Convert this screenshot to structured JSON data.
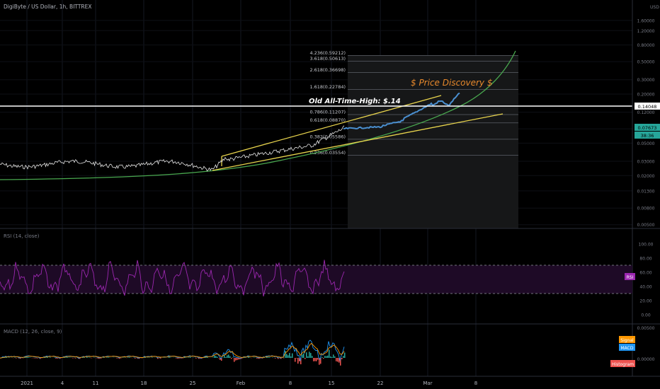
{
  "header": {
    "title": "DigiByte / US Dollar, 1h, BITTREX"
  },
  "price_scale": {
    "currency": "USD",
    "ticks": [
      "2.80000",
      "1.60000",
      "1.20000",
      "0.80000",
      "0.50000",
      "0.30000",
      "0.20000",
      "0.12000",
      "0.07500",
      "0.05000",
      "0.03000",
      "0.02000",
      "0.01300",
      "0.00800",
      "0.00500"
    ]
  },
  "badges": {
    "current_line": "0.14048",
    "last_price": "0.07673",
    "countdown": "38:36"
  },
  "fib_labels": [
    "4.236(0.59212)",
    "3.618(0.50613)",
    "2.618(0.36698)",
    "1.618(0.22784)",
    "0.786(0.11207)",
    "0.618(0.08870)",
    "0.382(0.05586)",
    "0.236(0.03554)"
  ],
  "annotations": {
    "ath": "Old All-Time-High: $.14",
    "discovery": "$ Price Discovery $"
  },
  "rsi_panel": {
    "title": "RSI (14, close)",
    "ticks": [
      "100.00",
      "80.00",
      "60.00",
      "40.00",
      "20.00",
      "0.00"
    ],
    "badge": "RSI"
  },
  "macd_panel": {
    "title": "MACD (12, 26, close, 9)",
    "ticks": [
      "0.00500",
      "0.00000"
    ],
    "badges": {
      "signal": "Signal",
      "macd": "MACD",
      "histogram": "Histogram"
    }
  },
  "time_axis": {
    "labels": [
      "2021",
      "4",
      "11",
      "18",
      "25",
      "Feb",
      "8",
      "15",
      "22",
      "Mar",
      "8"
    ]
  },
  "colors": {
    "background": "#000000",
    "grid": "#1e222d",
    "price_line": "#e6e6e6",
    "projection": "#4a8fd0",
    "yellow_channel": "#e8d44d",
    "green_curve": "#49a84f",
    "rsi": "#9c27b0",
    "macd": "#2196f3",
    "signal": "#ff9800",
    "discovery_text": "#e8892c",
    "last_price_badge": "#26a69a"
  },
  "chart_data": [
    {
      "type": "line",
      "title": "DigiByte / US Dollar, 1h, BITTREX",
      "y_scale": "log",
      "x": [
        "2021-01-01",
        "2021-01-04",
        "2021-01-11",
        "2021-01-18",
        "2021-01-25",
        "2021-02-01",
        "2021-02-08",
        "2021-02-15",
        "2021-02-22",
        "2021-03-01",
        "2021-03-08"
      ],
      "series": [
        {
          "name": "",
          "values": [
            0.031,
            0.03,
            0.029,
            0.029,
            0.03,
            0.04,
            0.052,
            0.082,
            null,
            null,
            null
          ]
        },
        {
          "name": "",
          "values": [
            null,
            null,
            null,
            null,
            null,
            null,
            null,
            0.082,
            0.09,
            0.11,
            0.18
          ]
        }
      ],
      "hline": 0.14048,
      "fib_levels": [
        0.59212,
        0.50613,
        0.36698,
        0.22784,
        0.11207,
        0.0887,
        0.05586,
        0.03554
      ],
      "ylim": [
        0.005,
        3.0
      ]
    },
    {
      "type": "line",
      "title": "RSI (14, close)",
      "ylim": [
        0,
        100
      ],
      "bands": [
        70,
        30
      ]
    },
    {
      "type": "line",
      "title": "MACD (12, 26, close, 9)",
      "series": [
        {
          "name": "MACD"
        },
        {
          "name": "Signal"
        },
        {
          "name": "Histogram"
        }
      ]
    }
  ]
}
